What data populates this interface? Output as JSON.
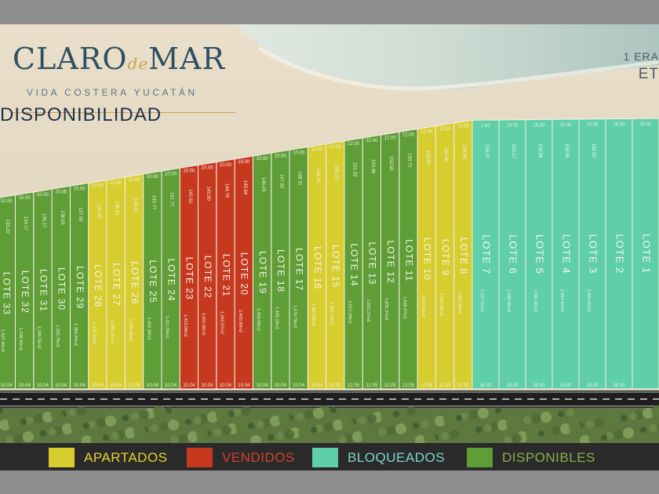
{
  "header": {
    "brand_left": "CLARO",
    "brand_mid": "de",
    "brand_right": "MAR",
    "tagline": "VIDA COSTERA YUCATÁN",
    "stage_line1": "1 ERA",
    "stage_line2": "ET",
    "section_title": "DISPONIBILIDAD"
  },
  "colors": {
    "apartado": "#d8cd2e",
    "vendido": "#c7391f",
    "bloqueado": "#5ecfa8",
    "disponible": "#5f9d36",
    "road": "#1f1f1f",
    "sea": "#bfd2ca",
    "sand": "#e7dcc6"
  },
  "lots": [
    {
      "label": "LOTE 1",
      "status": "bloqueado",
      "front": "15.00",
      "depth": "",
      "area": "",
      "back": ""
    },
    {
      "label": "LOTE 2",
      "status": "bloqueado",
      "front": "15.00",
      "depth": "",
      "area": "",
      "back": "15.00"
    },
    {
      "label": "LOTE 3",
      "status": "bloqueado",
      "front": "15.00",
      "depth": "158.99",
      "area": "2,384.85m2",
      "back": "15.00"
    },
    {
      "label": "LOTE 4",
      "status": "bloqueado",
      "front": "15.00",
      "depth": "158.98",
      "area": "2,384.68m2",
      "back": "15.00"
    },
    {
      "label": "LOTE 5",
      "status": "bloqueado",
      "front": "15.00",
      "depth": "158.86",
      "area": "2,384.90m2",
      "back": "15.00"
    },
    {
      "label": "LOTE 6",
      "status": "bloqueado",
      "front": "15.00",
      "depth": "159.17",
      "area": "2,388.36m2",
      "back": "15.00"
    },
    {
      "label": "LOTE 7",
      "status": "bloqueado",
      "front": "2.62",
      "depth": "158.37",
      "area": "2,297.31m2",
      "back": "16.33"
    },
    {
      "label": "LOTE 8",
      "status": "apartado",
      "front": "12.00",
      "depth": "156.30",
      "area": "1,850.68m2",
      "back": "12.05"
    },
    {
      "label": "LOTE 9",
      "status": "apartado",
      "front": "12.00",
      "depth": "155.46",
      "area": "1,837.60m2",
      "back": "12.05"
    },
    {
      "label": "LOTE 10",
      "status": "apartado",
      "front": "12.00",
      "depth": "155.80",
      "area": "1,860.89m2",
      "back": "12.05"
    },
    {
      "label": "LOTE 11",
      "status": "disponible",
      "front": "12.00",
      "depth": "153.72",
      "area": "1,848.47m2",
      "back": "12.05"
    },
    {
      "label": "LOTE 12",
      "status": "disponible",
      "front": "12.00",
      "depth": "153.59",
      "area": "1,835.37m2",
      "back": "12.05"
    },
    {
      "label": "LOTE 13",
      "status": "disponible",
      "front": "12.00",
      "depth": "153.46",
      "area": "1,823.27m2",
      "back": "12.05"
    },
    {
      "label": "LOTE 14",
      "status": "disponible",
      "front": "12.00",
      "depth": "151.33",
      "area": "1,812.39m2",
      "back": "12.05"
    },
    {
      "label": "LOTE 15",
      "status": "apartado",
      "front": "12.00",
      "depth": "150.20",
      "area": "1,801.04m2",
      "back": "12.05"
    },
    {
      "label": "LOTE 16",
      "status": "apartado",
      "front": "10.00",
      "depth": "149.06",
      "area": "1,487.58m2",
      "back": "10.04"
    },
    {
      "label": "LOTE 17",
      "status": "disponible",
      "front": "10.00",
      "depth": "148.31",
      "area": "1,476.78m2",
      "back": "10.04"
    },
    {
      "label": "LOTE 18",
      "status": "disponible",
      "front": "10.00",
      "depth": "147.52",
      "area": "1,468.18m2",
      "back": "10.04"
    },
    {
      "label": "LOTE 19",
      "status": "disponible",
      "front": "10.00",
      "depth": "146.43",
      "area": "1,459.58m2",
      "back": "10.04"
    },
    {
      "label": "LOTE 20",
      "status": "vendido",
      "front": "10.00",
      "depth": "145.64",
      "area": "1,450.99m2",
      "back": "10.04"
    },
    {
      "label": "LOTE 21",
      "status": "vendido",
      "front": "10.00",
      "depth": "144.76",
      "area": "1,440.07m2",
      "back": "10.04"
    },
    {
      "label": "LOTE 22",
      "status": "vendido",
      "front": "10.00",
      "depth": "143.90",
      "area": "1,431.66m2",
      "back": "10.04"
    },
    {
      "label": "LOTE 23",
      "status": "vendido",
      "front": "10.00",
      "depth": "142.61",
      "area": "1,423.06m2",
      "back": "10.04"
    },
    {
      "label": "LOTE 24",
      "status": "disponible",
      "front": "10.00",
      "depth": "141.71",
      "area": "1,412.39m2",
      "back": "10.04"
    },
    {
      "label": "LOTE 25",
      "status": "disponible",
      "front": "10.00",
      "depth": "140.77",
      "area": "1,402.90m2",
      "back": "10.04"
    },
    {
      "label": "LOTE 26",
      "status": "apartado",
      "front": "10.00",
      "depth": "139.91",
      "area": "1,393.39m2",
      "back": "10.04"
    },
    {
      "label": "LOTE 27",
      "status": "apartado",
      "front": "10.00",
      "depth": "138.91",
      "area": "1,384.15m2",
      "back": "10.04"
    },
    {
      "label": "LOTE 28",
      "status": "apartado",
      "front": "10.00",
      "depth": "137.90",
      "area": "1,374.70m2",
      "back": "10.04"
    },
    {
      "label": "LOTE 29",
      "status": "disponible",
      "front": "10.00",
      "depth": "137.00",
      "area": "1,365.24m2",
      "back": "10.04"
    },
    {
      "label": "LOTE 30",
      "status": "disponible",
      "front": "10.00",
      "depth": "136.03",
      "area": "1,355.79m2",
      "back": "10.04"
    },
    {
      "label": "LOTE 31",
      "status": "disponible",
      "front": "10.00",
      "depth": "135.17",
      "area": "1,346.36m2",
      "back": "10.04"
    },
    {
      "label": "LOTE 32",
      "status": "disponible",
      "front": "10.00",
      "depth": "134.17",
      "area": "1,336.90m2",
      "back": "10.04"
    },
    {
      "label": "LOTE 33",
      "status": "disponible",
      "front": "10.00",
      "depth": "133.22",
      "area": "1,327.45m2",
      "back": "10.04"
    },
    {
      "label": "",
      "status": "apartado",
      "front": "",
      "depth": "",
      "area": "",
      "back": ""
    }
  ],
  "legend": [
    {
      "label": "APARTADOS",
      "status": "apartado",
      "text_color": "#e6d52f"
    },
    {
      "label": "VENDIDOS",
      "status": "vendido",
      "text_color": "#d2432b"
    },
    {
      "label": "BLOQUEADOS",
      "status": "bloqueado",
      "text_color": "#7ed6d2"
    },
    {
      "label": "DISPONIBLES",
      "status": "disponible",
      "text_color": "#8bb04c"
    }
  ]
}
